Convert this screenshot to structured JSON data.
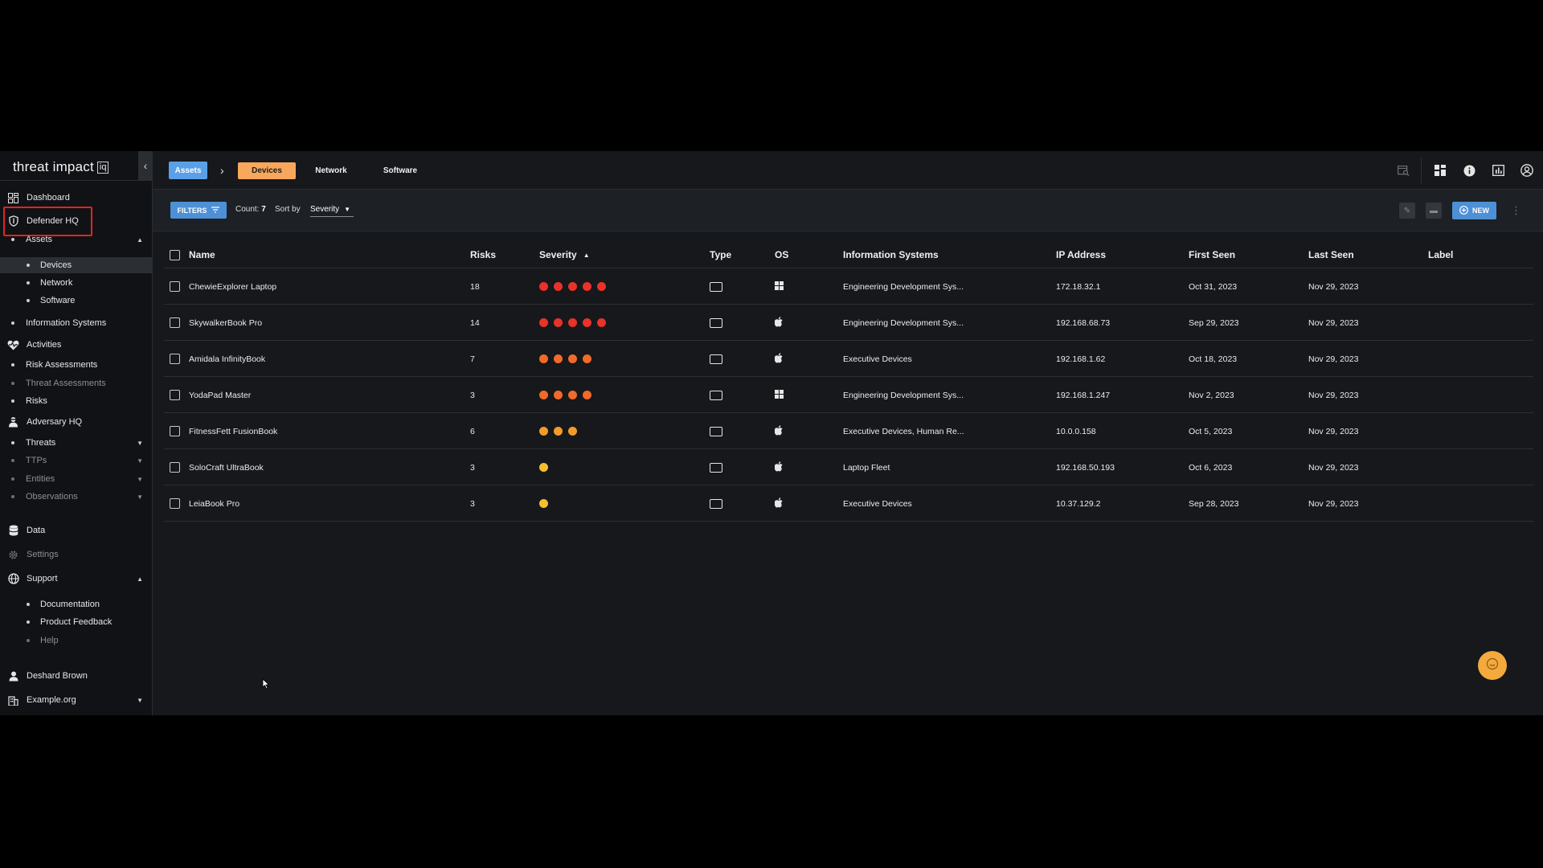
{
  "brand": {
    "name": "threat impact",
    "badge": "iq"
  },
  "sidebar": {
    "items": [
      {
        "label": "Dashboard",
        "icon": "dashboard-icon"
      },
      {
        "label": "Defender HQ",
        "icon": "shield-icon"
      },
      {
        "label": "Assets"
      },
      {
        "label": "Devices"
      },
      {
        "label": "Network"
      },
      {
        "label": "Software"
      },
      {
        "label": "Information Systems"
      },
      {
        "label": "Activities",
        "icon": "heartbeat-icon"
      },
      {
        "label": "Risk Assessments"
      },
      {
        "label": "Threat Assessments"
      },
      {
        "label": "Risks"
      },
      {
        "label": "Adversary HQ",
        "icon": "adversary-icon"
      },
      {
        "label": "Threats"
      },
      {
        "label": "TTPs"
      },
      {
        "label": "Entities"
      },
      {
        "label": "Observations"
      },
      {
        "label": "Data",
        "icon": "database-icon"
      },
      {
        "label": "Settings",
        "icon": "gear-icon"
      },
      {
        "label": "Support",
        "icon": "globe-icon"
      },
      {
        "label": "Documentation"
      },
      {
        "label": "Product Feedback"
      },
      {
        "label": "Help"
      },
      {
        "label": "Deshard Brown",
        "icon": "user-icon"
      },
      {
        "label": "Example.org",
        "icon": "building-icon"
      }
    ]
  },
  "topbar": {
    "breadcrumb": "Assets",
    "separator": "›",
    "tabs": [
      "Devices",
      "Network",
      "Software"
    ],
    "active_tab": "Devices"
  },
  "toolbar": {
    "filters_label": "FILTERS",
    "count_label": "Count:",
    "count_value": "7",
    "sort_label": "Sort by",
    "sort_value": "Severity",
    "new_label": "NEW"
  },
  "table": {
    "columns": [
      "Name",
      "Risks",
      "Severity",
      "Type",
      "OS",
      "Information Systems",
      "IP Address",
      "First Seen",
      "Last Seen",
      "Label"
    ],
    "rows": [
      {
        "name": "ChewieExplorer Laptop",
        "risks": "18",
        "severity": 5,
        "severity_color": "#e8322a",
        "type": "laptop",
        "os": "windows",
        "info_systems": "Engineering Development Sys...",
        "ip": "172.18.32.1",
        "first_seen": "Oct 31, 2023",
        "last_seen": "Nov 29, 2023",
        "label": ""
      },
      {
        "name": "SkywalkerBook Pro",
        "risks": "14",
        "severity": 5,
        "severity_color": "#e8322a",
        "type": "laptop",
        "os": "apple",
        "info_systems": "Engineering Development Sys...",
        "ip": "192.168.68.73",
        "first_seen": "Sep 29, 2023",
        "last_seen": "Nov 29, 2023",
        "label": ""
      },
      {
        "name": "Amidala InfinityBook",
        "risks": "7",
        "severity": 4,
        "severity_color": "#f26a2a",
        "type": "laptop",
        "os": "apple",
        "info_systems": "Executive Devices",
        "ip": "192.168.1.62",
        "first_seen": "Oct 18, 2023",
        "last_seen": "Nov 29, 2023",
        "label": ""
      },
      {
        "name": "YodaPad Master",
        "risks": "3",
        "severity": 4,
        "severity_color": "#f26a2a",
        "type": "laptop",
        "os": "windows",
        "info_systems": "Engineering Development Sys...",
        "ip": "192.168.1.247",
        "first_seen": "Nov 2, 2023",
        "last_seen": "Nov 29, 2023",
        "label": ""
      },
      {
        "name": "FitnessFett FusionBook",
        "risks": "6",
        "severity": 3,
        "severity_color": "#f39a2a",
        "type": "laptop",
        "os": "apple",
        "info_systems": "Executive Devices, Human Re...",
        "ip": "10.0.0.158",
        "first_seen": "Oct 5, 2023",
        "last_seen": "Nov 29, 2023",
        "label": ""
      },
      {
        "name": "SoloCraft UltraBook",
        "risks": "3",
        "severity": 1,
        "severity_color": "#f5c02e",
        "type": "laptop",
        "os": "apple",
        "info_systems": "Laptop Fleet",
        "ip": "192.168.50.193",
        "first_seen": "Oct 6, 2023",
        "last_seen": "Nov 29, 2023",
        "label": ""
      },
      {
        "name": "LeiaBook Pro",
        "risks": "3",
        "severity": 1,
        "severity_color": "#f5c02e",
        "type": "laptop",
        "os": "apple",
        "info_systems": "Executive Devices",
        "ip": "10.37.129.2",
        "first_seen": "Sep 28, 2023",
        "last_seen": "Nov 29, 2023",
        "label": ""
      }
    ]
  },
  "colors": {
    "accent_blue": "#4d90d6",
    "active_tab": "#f7a85d",
    "highlight": "#e0251f",
    "chat": "#f3a93b"
  }
}
